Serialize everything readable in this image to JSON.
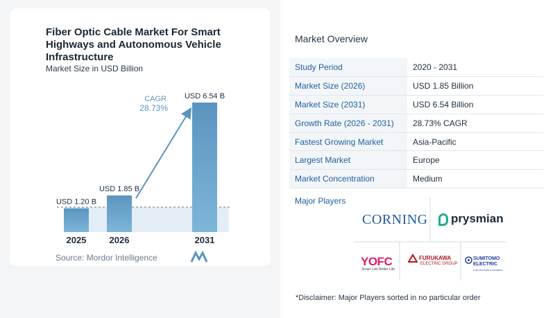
{
  "chart_data": {
    "type": "bar",
    "title": "Fiber Optic Cable Market For Smart Highways and Autonomous Vehicle Infrastructure",
    "subtitle": "Market Size in USD Billion",
    "categories": [
      "2025",
      "2026",
      "2031"
    ],
    "values": [
      1.2,
      1.85,
      6.54
    ],
    "data_labels": [
      "USD 1.20 B",
      "USD 1.85 B",
      "USD 6.54 B"
    ],
    "ylim": [
      0,
      7
    ],
    "cagr_label": "CAGR",
    "cagr_value": "28.73%",
    "bar_color": "#5b94bf",
    "bar_color_light": "#7eb6d9",
    "source": "Source:  Mordor Intelligence"
  },
  "overview": {
    "title": "Market Overview",
    "rows": [
      {
        "key": "Study Period",
        "value": "2020 - 2031"
      },
      {
        "key": "Market Size (2026)",
        "value": "USD 1.85 Billion"
      },
      {
        "key": "Market Size (2031)",
        "value": "USD 6.54 Billion"
      },
      {
        "key": "Growth Rate (2026 - 2031)",
        "value": "28.73% CAGR"
      },
      {
        "key": "Fastest Growing Market",
        "value": "Asia-Pacific"
      },
      {
        "key": "Largest Market",
        "value": "Europe"
      },
      {
        "key": "Market Concentration",
        "value": "Medium"
      }
    ]
  },
  "players": {
    "title": "Major Players",
    "corning": "CORNING",
    "prysmian": "prysmian",
    "yofc": "YOFC",
    "yofc_tagline": "Smart Link Better Life.",
    "furukawa": "FURUKAWA",
    "furukawa_sub": "ELECTRIC GROUP",
    "sumitomo_line1": "SUMITOMO",
    "sumitomo_line2": "ELECTRIC",
    "sumitomo_tagline": "Connect with Innovation"
  },
  "disclaimer": "*Disclaimer: Major Players sorted in no particular order"
}
